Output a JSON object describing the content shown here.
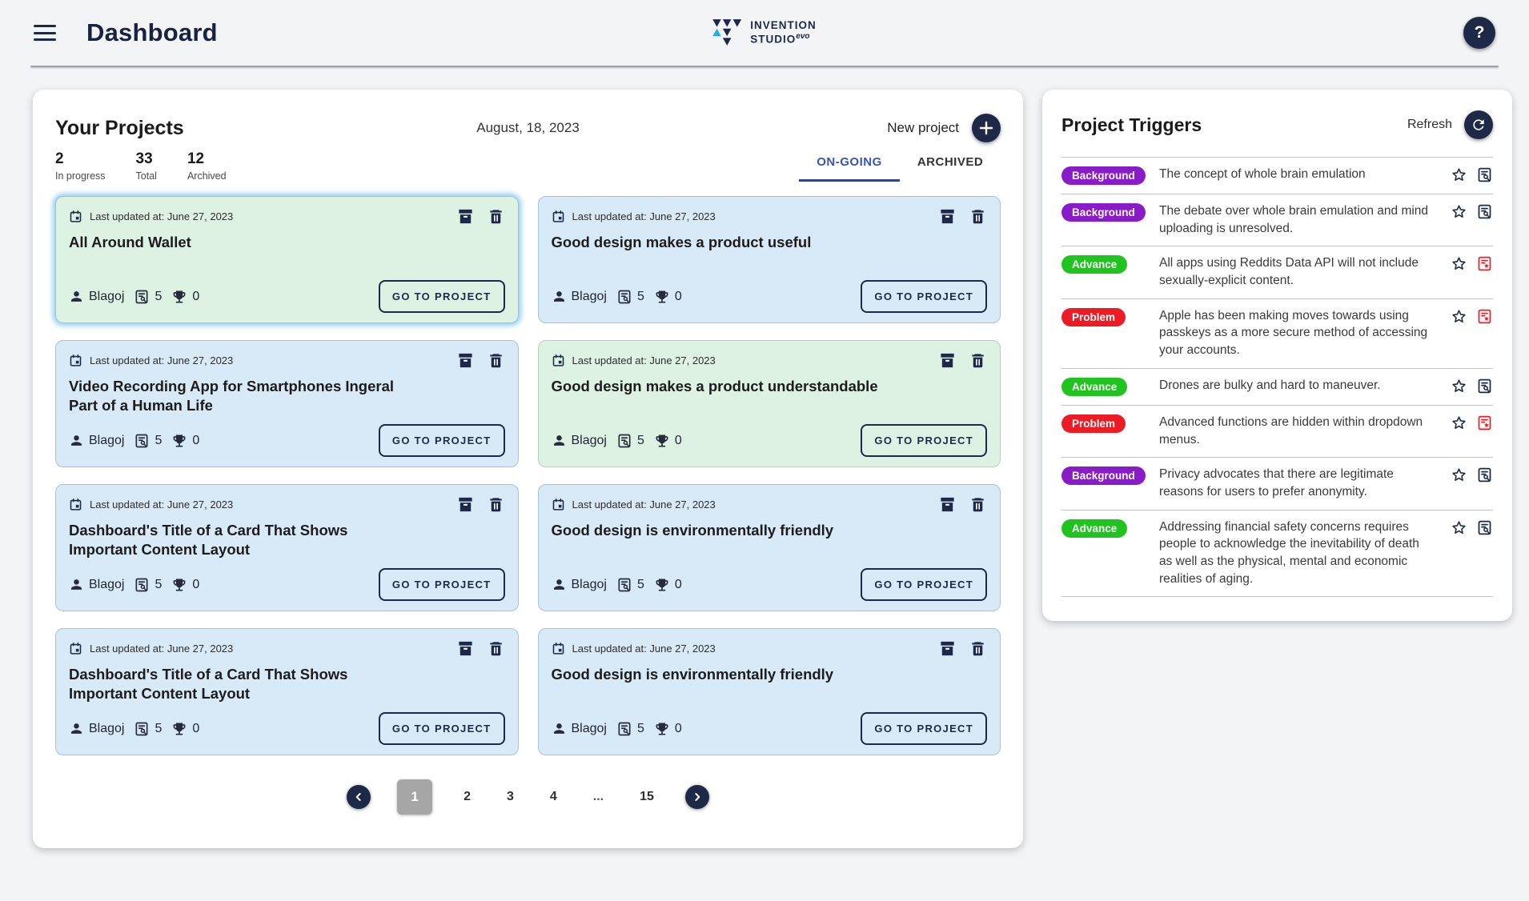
{
  "header": {
    "title": "Dashboard",
    "logo_line1": "INVENTION",
    "logo_line2": "STUDIO",
    "logo_sup": "evo",
    "help_label": "?"
  },
  "projects_panel": {
    "title": "Your Projects",
    "date": "August, 18, 2023",
    "new_project_label": "New project",
    "stats": [
      {
        "value": "2",
        "label": "In progress"
      },
      {
        "value": "33",
        "label": "Total"
      },
      {
        "value": "12",
        "label": "Archived"
      }
    ],
    "tabs": [
      {
        "label": "ON-GOING",
        "active": true
      },
      {
        "label": "ARCHIVED",
        "active": false
      }
    ],
    "cards": [
      {
        "updated": "Last updated at: June 27, 2023",
        "title": "All Around Wallet",
        "owner": "Blagoj",
        "docs": "5",
        "trophies": "0",
        "cta": "GO TO PROJECT",
        "variant": "green",
        "selected": true
      },
      {
        "updated": "Last updated at: June 27, 2023",
        "title": "Good design makes a product useful",
        "owner": "Blagoj",
        "docs": "5",
        "trophies": "0",
        "cta": "GO TO PROJECT",
        "variant": "blue",
        "selected": false
      },
      {
        "updated": "Last updated at: June 27, 2023",
        "title": "Video Recording App for Smartphones Ingeral Part of a Human Life",
        "owner": "Blagoj",
        "docs": "5",
        "trophies": "0",
        "cta": "GO TO PROJECT",
        "variant": "blue",
        "selected": false
      },
      {
        "updated": "Last updated at: June 27, 2023",
        "title": "Good design makes a product understandable",
        "owner": "Blagoj",
        "docs": "5",
        "trophies": "0",
        "cta": "GO TO PROJECT",
        "variant": "green",
        "selected": false
      },
      {
        "updated": "Last updated at: June 27, 2023",
        "title": "Dashboard's Title of a Card That Shows Important Content Layout",
        "owner": "Blagoj",
        "docs": "5",
        "trophies": "0",
        "cta": "GO TO PROJECT",
        "variant": "blue",
        "selected": false
      },
      {
        "updated": "Last updated at: June 27, 2023",
        "title": "Good design is environmentally friendly",
        "owner": "Blagoj",
        "docs": "5",
        "trophies": "0",
        "cta": "GO TO PROJECT",
        "variant": "blue",
        "selected": false
      },
      {
        "updated": "Last updated at: June 27, 2023",
        "title": "Dashboard's Title of a Card That Shows Important Content Layout",
        "owner": "Blagoj",
        "docs": "5",
        "trophies": "0",
        "cta": "GO TO PROJECT",
        "variant": "blue",
        "selected": false
      },
      {
        "updated": "Last updated at: June 27, 2023",
        "title": "Good design is environmentally friendly",
        "owner": "Blagoj",
        "docs": "5",
        "trophies": "0",
        "cta": "GO TO PROJECT",
        "variant": "blue",
        "selected": false
      }
    ],
    "pagination": {
      "pages": [
        "1",
        "2",
        "3",
        "4",
        "...",
        "15"
      ],
      "active": "1"
    }
  },
  "triggers_panel": {
    "title": "Project Triggers",
    "refresh_label": "Refresh",
    "badge_colors": {
      "Background": "#8a1bc9",
      "Advance": "#1fc41f",
      "Problem": "#ed1c24"
    },
    "items": [
      {
        "badge": "Background",
        "text": "The concept of whole brain emulation",
        "icon": "doc-search"
      },
      {
        "badge": "Background",
        "text": "The debate over whole brain emulation and mind uploading is unresolved.",
        "icon": "doc-search"
      },
      {
        "badge": "Advance",
        "text": "All apps using Reddits Data API will not include sexually-explicit content.",
        "icon": "doc-star"
      },
      {
        "badge": "Problem",
        "text": "Apple has been making moves towards using passkeys as a more secure method of accessing your accounts.",
        "icon": "doc-star"
      },
      {
        "badge": "Advance",
        "text": "Drones are bulky and hard to maneuver.",
        "icon": "doc-search"
      },
      {
        "badge": "Problem",
        "text": "Advanced functions are hidden within dropdown menus.",
        "icon": "doc-star"
      },
      {
        "badge": "Background",
        "text": "Privacy advocates that there are legitimate reasons for users to prefer anonymity.",
        "icon": "doc-search"
      },
      {
        "badge": "Advance",
        "text": "Addressing financial safety concerns requires people to acknowledge the inevitability of death as well as the physical, mental and economic realities of aging.",
        "icon": "doc-search"
      }
    ]
  },
  "colors": {
    "navy": "#1e2947",
    "tab_active_blue": "#3a53b8",
    "tab_underline": "#2e4494",
    "card_blue": "#d8e9f8",
    "card_green": "#ddf2e3",
    "selected_glow": "#93ccf1",
    "logo_light_blue": "#29abe2",
    "page_background": "#f3f4f6",
    "active_page_gray": "#a6a6a6"
  }
}
